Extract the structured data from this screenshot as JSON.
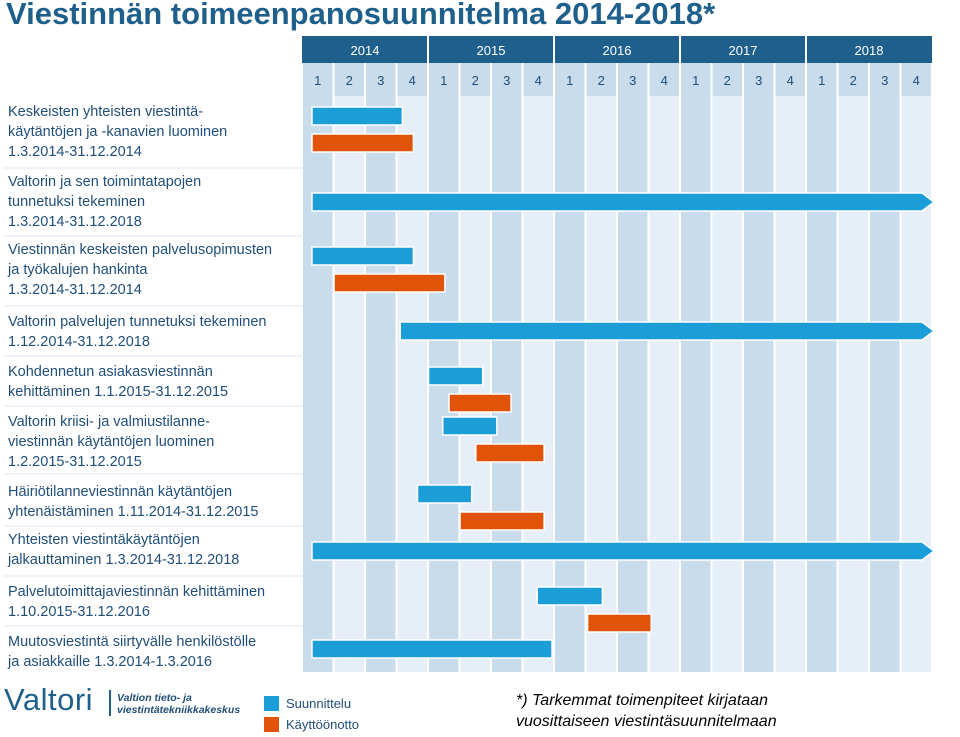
{
  "title": "Viestinnän toimeenpanosuunnitelma 2014-2018*",
  "colors": {
    "plan": "#1b9dd8",
    "deploy": "#e15309",
    "header": "#1f5f8b",
    "grid_dark": "#c9dceb",
    "grid_light": "#e6eff7"
  },
  "chart_data": {
    "type": "gantt",
    "years": [
      "2014",
      "2015",
      "2016",
      "2017",
      "2018"
    ],
    "quarters": [
      "1",
      "2",
      "3",
      "4",
      "1",
      "2",
      "3",
      "4",
      "1",
      "2",
      "3",
      "4",
      "1",
      "2",
      "3",
      "4",
      "1",
      "2",
      "3",
      "4"
    ],
    "series": [
      {
        "name": "Suunnittelu",
        "color": "#1b9dd8"
      },
      {
        "name": "Käyttöönotto",
        "color": "#e15309"
      }
    ],
    "rows": [
      {
        "label": "Keskeisten yhteisten viestintä-\nkäytäntöjen ja -kanavien luominen\n1.3.2014-31.12.2014",
        "bars": [
          {
            "series": "Suunnittelu",
            "start": 0.0,
            "end": 3.25
          },
          {
            "series": "Käyttöönotto",
            "start": 0.0,
            "end": 3.6
          }
        ]
      },
      {
        "label": "Valtorin ja sen toimintatapojen\ntunnetuksi tekeminen\n1.3.2014-31.12.2018",
        "bars": [
          {
            "series": "Suunnittelu",
            "start": 0.0,
            "end": 20.0,
            "arrow": true
          }
        ]
      },
      {
        "label": "Viestinnän keskeisten palvelusopimusten\nja työkalujen hankinta\n1.3.2014-31.12.2014",
        "bars": [
          {
            "series": "Suunnittelu",
            "start": 0.0,
            "end": 3.6
          },
          {
            "series": "Käyttöönotto",
            "start": 0.7,
            "end": 4.6
          }
        ]
      },
      {
        "label": "Valtorin palvelujen tunnetuksi tekeminen\n1.12.2014-31.12.2018",
        "bars": [
          {
            "series": "Suunnittelu",
            "start": 2.8,
            "end": 20.0,
            "arrow": true
          }
        ]
      },
      {
        "label": "Kohdennetun asiakasviestinnän\nkehittäminen 1.1.2015-31.12.2015",
        "bars": [
          {
            "series": "Suunnittelu",
            "start": 3.7,
            "end": 5.8
          },
          {
            "series": "Käyttöönotto",
            "start": 4.35,
            "end": 6.7
          }
        ]
      },
      {
        "label": "Valtorin  kriisi- ja valmiustilanne-\nviestinnän käytäntöjen luominen\n1.2.2015-31.12.2015",
        "bars": [
          {
            "series": "Suunnittelu",
            "start": 4.15,
            "end": 6.25
          },
          {
            "series": "Käyttöönotto",
            "start": 5.2,
            "end": 7.75
          }
        ]
      },
      {
        "label": "Häiriötilanneviestinnän käytäntöjen\nyhtenäistäminen 1.11.2014-31.12.2015",
        "bars": [
          {
            "series": "Suunnittelu",
            "start": 3.35,
            "end": 5.45
          },
          {
            "series": "Käyttöönotto",
            "start": 4.7,
            "end": 7.75
          }
        ]
      },
      {
        "label": "Yhteisten viestintäkäytäntöjen\njalkauttaminen 1.3.2014-31.12.2018",
        "bars": [
          {
            "series": "Suunnittelu",
            "start": 0.0,
            "end": 20.0,
            "arrow": true
          }
        ]
      },
      {
        "label": "Palvelutoimittajaviestinnän kehittäminen\n1.10.2015-31.12.2016",
        "bars": [
          {
            "series": "Suunnittelu",
            "start": 7.15,
            "end": 9.6
          },
          {
            "series": "Käyttöönotto",
            "start": 8.75,
            "end": 11.15
          }
        ]
      },
      {
        "label": "Muutosviestintä siirtyvälle henkilöstölle\nja asiakkaille 1.3.2014-1.3.2016",
        "bars": [
          {
            "series": "Suunnittelu",
            "start": 0.0,
            "end": 8.0
          }
        ]
      }
    ]
  },
  "logo": {
    "name": "Valtori",
    "tagline": "Valtion tieto- ja\nviestintätekniikkakeskus"
  },
  "legend": {
    "plan": "Suunnittelu",
    "deploy": "Käyttöönotto"
  },
  "footnote": "*) Tarkemmat toimenpiteet kirjataan\nvuosittaiseen viestintäsuunnitelmaan"
}
